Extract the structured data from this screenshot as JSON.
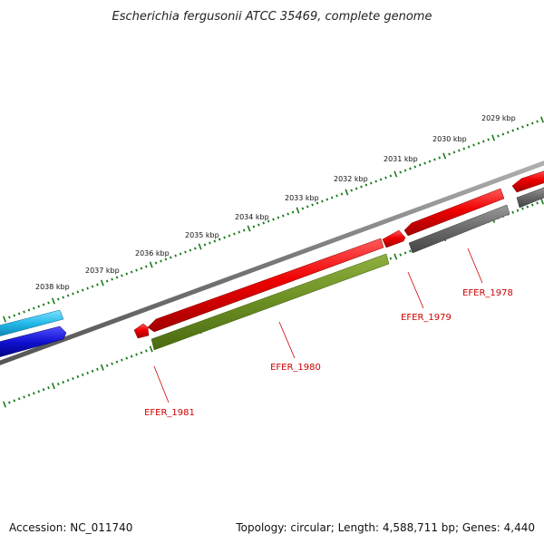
{
  "title": "Escherichia fergusonii ATCC 35469, complete genome",
  "footer": {
    "accession": "Accession: NC_011740",
    "summary": "Topology: circular; Length: 4,588,711 bp; Genes: 4,440"
  },
  "colors": {
    "backbone": "#7a7a7a",
    "gene_red": "#e80000",
    "gene_green": "#6b8e23",
    "gene_gray": "#707070",
    "gene_cyan": "#22b8e8",
    "gene_blue": "#1010d0",
    "ticks": "#1a7a1a",
    "label": "#cc0000"
  },
  "scale_ticks": [
    {
      "label": "2029 kbp"
    },
    {
      "label": "2030 kbp"
    },
    {
      "label": "2031 kbp"
    },
    {
      "label": "2032 kbp"
    },
    {
      "label": "2033 kbp"
    },
    {
      "label": "2034 kbp"
    },
    {
      "label": "2035 kbp"
    },
    {
      "label": "2036 kbp"
    },
    {
      "label": "2037 kbp"
    },
    {
      "label": "2038 kbp"
    }
  ],
  "gene_labels": [
    {
      "label": "EFER_1978"
    },
    {
      "label": "EFER_1979"
    },
    {
      "label": "EFER_1980"
    },
    {
      "label": "EFER_1981"
    }
  ]
}
